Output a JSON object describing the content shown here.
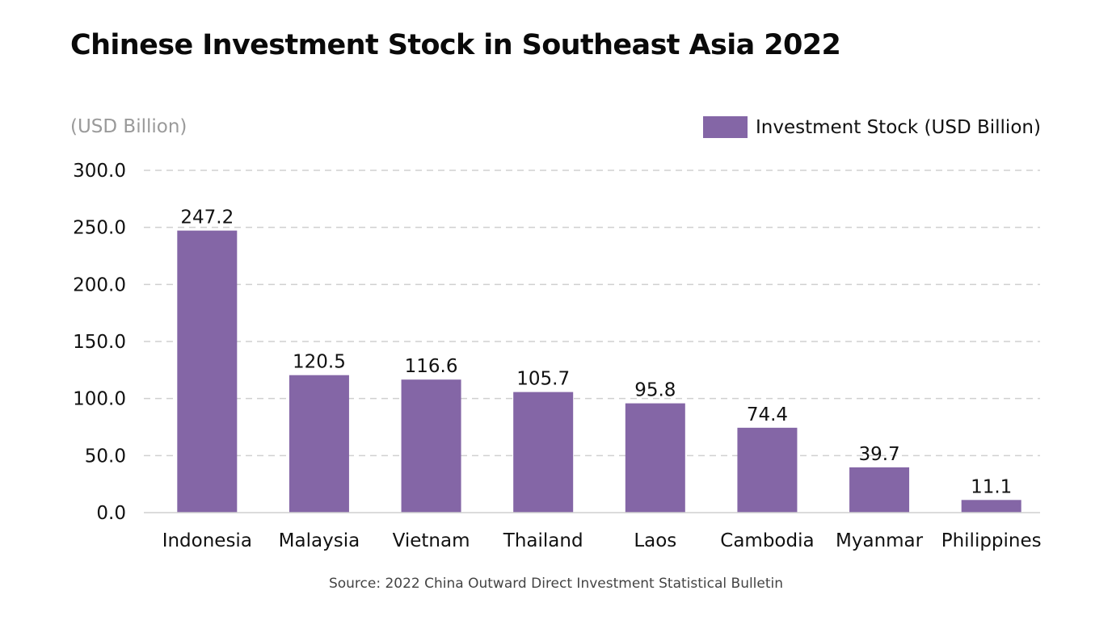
{
  "chart_data": {
    "type": "bar",
    "title": "Chinese Investment Stock in Southeast Asia 2022",
    "ylabel": "(USD Billion)",
    "xlabel": "",
    "categories": [
      "Indonesia",
      "Malaysia",
      "Vietnam",
      "Thailand",
      "Laos",
      "Cambodia",
      "Myanmar",
      "Philippines"
    ],
    "series": [
      {
        "name": "Investment Stock (USD Billion)",
        "color": "#8466a6",
        "values": [
          247.2,
          120.5,
          116.6,
          105.7,
          95.8,
          74.4,
          39.7,
          11.1
        ]
      }
    ],
    "data_labels": [
      "247.2",
      "120.5",
      "116.6",
      "105.7",
      "95.8",
      "74.4",
      "39.7",
      "11.1"
    ],
    "ylim": [
      0,
      300
    ],
    "yticks": [
      0,
      50,
      100,
      150,
      200,
      250,
      300
    ],
    "ytick_labels": [
      "0.0",
      "50.0",
      "100.0",
      "150.0",
      "200.0",
      "250.0",
      "300.0"
    ],
    "grid": true,
    "grid_style": "dashed",
    "legend_position": "top-right",
    "source": "Source: 2022 China Outward Direct Investment Statistical Bulletin"
  },
  "colors": {
    "bar": "#8466a6",
    "grid": "#d0d0d0",
    "axis": "#cfcfcf",
    "unit_label": "#9a9a9a",
    "text": "#111111"
  }
}
